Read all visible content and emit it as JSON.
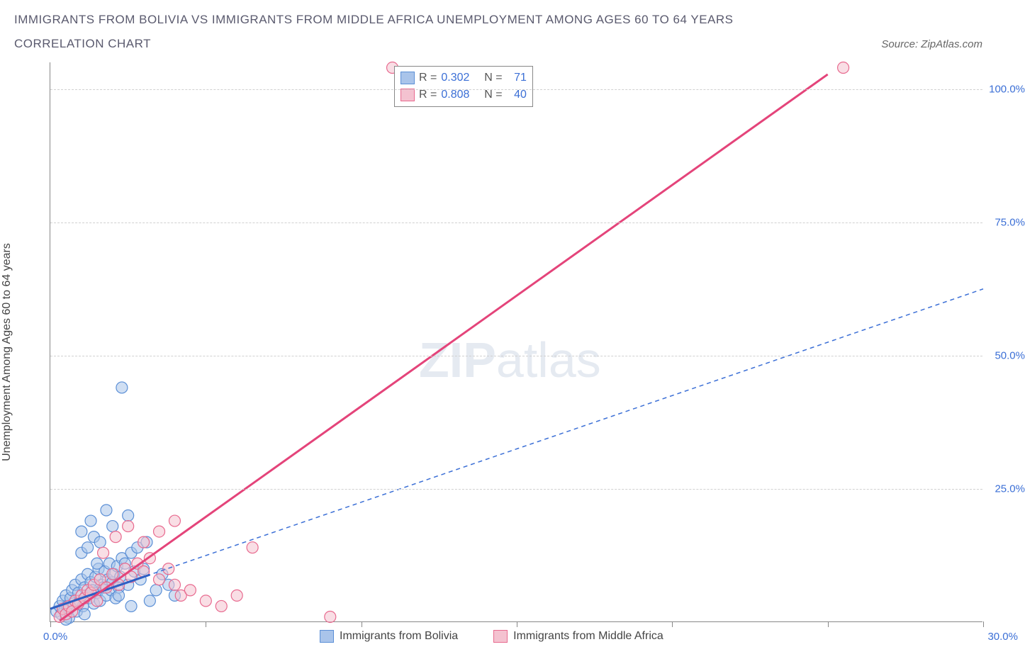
{
  "title": "IMMIGRANTS FROM BOLIVIA VS IMMIGRANTS FROM MIDDLE AFRICA UNEMPLOYMENT AMONG AGES 60 TO 64 YEARS",
  "subtitle": "CORRELATION CHART",
  "source_label": "Source:",
  "source_value": "ZipAtlas.com",
  "y_axis_label": "Unemployment Among Ages 60 to 64 years",
  "watermark_bold": "ZIP",
  "watermark_light": "atlas",
  "chart": {
    "type": "scatter",
    "xlim": [
      0,
      30
    ],
    "ylim": [
      0,
      105
    ],
    "x_ticks": [
      0,
      5,
      10,
      15,
      20,
      25,
      30
    ],
    "x_tick_labels": {
      "left": "0.0%",
      "right": "30.0%"
    },
    "y_ticks": [
      25,
      50,
      75,
      100
    ],
    "y_tick_labels": [
      "25.0%",
      "50.0%",
      "75.0%",
      "100.0%"
    ],
    "grid_color": "#d0d0d0",
    "background": "#ffffff",
    "series": [
      {
        "name": "Immigrants from Bolivia",
        "color_fill": "#a9c4ea",
        "color_stroke": "#5b8fd6",
        "marker_radius": 8,
        "fill_opacity": 0.55,
        "R": "0.302",
        "N": "71",
        "trend": {
          "style": "dashed",
          "stroke": "#3b6fd6",
          "width": 1.5,
          "slope": 2.0,
          "intercept": 2.5,
          "x0": 0,
          "x1": 30
        },
        "trend_solid_segment": {
          "stroke": "#2d5fc4",
          "width": 3,
          "x0": 0,
          "x1": 3.2
        },
        "points": [
          [
            0.2,
            2
          ],
          [
            0.3,
            3
          ],
          [
            0.35,
            1.5
          ],
          [
            0.4,
            4
          ],
          [
            0.45,
            2.2
          ],
          [
            0.5,
            5
          ],
          [
            0.55,
            3
          ],
          [
            0.6,
            2.5
          ],
          [
            0.65,
            4.5
          ],
          [
            0.7,
            6
          ],
          [
            0.75,
            3.5
          ],
          [
            0.8,
            7
          ],
          [
            0.85,
            2
          ],
          [
            0.9,
            5.5
          ],
          [
            0.95,
            4
          ],
          [
            1.0,
            8
          ],
          [
            1.05,
            3
          ],
          [
            1.1,
            6.5
          ],
          [
            1.15,
            5
          ],
          [
            1.2,
            9
          ],
          [
            1.25,
            4.5
          ],
          [
            1.3,
            7.5
          ],
          [
            1.35,
            6
          ],
          [
            1.4,
            3.5
          ],
          [
            1.45,
            8.5
          ],
          [
            1.5,
            5.5
          ],
          [
            1.55,
            10
          ],
          [
            1.6,
            4
          ],
          [
            1.65,
            7
          ],
          [
            1.7,
            6.5
          ],
          [
            1.75,
            9.5
          ],
          [
            1.8,
            5
          ],
          [
            1.85,
            8
          ],
          [
            1.9,
            11
          ],
          [
            1.95,
            6
          ],
          [
            2.0,
            7.5
          ],
          [
            2.05,
            9
          ],
          [
            2.1,
            4.5
          ],
          [
            2.15,
            10.5
          ],
          [
            2.2,
            6.5
          ],
          [
            2.25,
            8.5
          ],
          [
            2.3,
            12
          ],
          [
            2.4,
            11
          ],
          [
            2.5,
            7
          ],
          [
            2.6,
            13
          ],
          [
            2.7,
            9.5
          ],
          [
            2.8,
            14
          ],
          [
            2.9,
            8
          ],
          [
            3.0,
            10
          ],
          [
            3.1,
            15
          ],
          [
            1.0,
            13
          ],
          [
            1.2,
            14
          ],
          [
            1.4,
            16
          ],
          [
            1.6,
            15
          ],
          [
            1.0,
            17
          ],
          [
            2.0,
            18
          ],
          [
            1.3,
            19
          ],
          [
            1.8,
            21
          ],
          [
            2.5,
            20
          ],
          [
            1.5,
            11
          ],
          [
            2.2,
            5
          ],
          [
            2.6,
            3
          ],
          [
            3.2,
            4
          ],
          [
            3.4,
            6
          ],
          [
            3.6,
            9
          ],
          [
            3.8,
            7
          ],
          [
            4.0,
            5
          ],
          [
            1.1,
            1.5
          ],
          [
            0.6,
            0.8
          ],
          [
            2.3,
            44
          ],
          [
            0.5,
            0.5
          ]
        ]
      },
      {
        "name": "Immigrants from Middle Africa",
        "color_fill": "#f4c2d0",
        "color_stroke": "#e86a8f",
        "marker_radius": 8,
        "fill_opacity": 0.55,
        "R": "0.808",
        "N": "40",
        "trend": {
          "style": "solid",
          "stroke": "#e4447a",
          "width": 3,
          "slope": 4.15,
          "intercept": -1,
          "x0": 0.3,
          "x1": 25
        },
        "points": [
          [
            0.3,
            1
          ],
          [
            0.4,
            2.5
          ],
          [
            0.5,
            1.5
          ],
          [
            0.6,
            3
          ],
          [
            0.7,
            2
          ],
          [
            0.8,
            4
          ],
          [
            0.9,
            3.5
          ],
          [
            1.0,
            5
          ],
          [
            1.1,
            4.5
          ],
          [
            1.2,
            6
          ],
          [
            1.3,
            5.5
          ],
          [
            1.4,
            7
          ],
          [
            1.5,
            4
          ],
          [
            1.6,
            8
          ],
          [
            1.8,
            6.5
          ],
          [
            2.0,
            9
          ],
          [
            2.2,
            7
          ],
          [
            2.4,
            10
          ],
          [
            2.6,
            8.5
          ],
          [
            2.8,
            11
          ],
          [
            3.0,
            9.5
          ],
          [
            3.2,
            12
          ],
          [
            3.5,
            8
          ],
          [
            3.8,
            10
          ],
          [
            4.0,
            7
          ],
          [
            4.2,
            5
          ],
          [
            4.5,
            6
          ],
          [
            5.0,
            4
          ],
          [
            5.5,
            3
          ],
          [
            6.0,
            5
          ],
          [
            3.0,
            15
          ],
          [
            3.5,
            17
          ],
          [
            4.0,
            19
          ],
          [
            6.5,
            14
          ],
          [
            9.0,
            1
          ],
          [
            11.0,
            104
          ],
          [
            25.5,
            104
          ],
          [
            2.5,
            18
          ],
          [
            1.7,
            13
          ],
          [
            2.1,
            16
          ]
        ]
      }
    ]
  },
  "stat_labels": {
    "R": "R =",
    "N": "N ="
  },
  "legend_bottom": [
    {
      "label": "Immigrants from Bolivia",
      "fill": "#a9c4ea",
      "stroke": "#5b8fd6"
    },
    {
      "label": "Immigrants from Middle Africa",
      "fill": "#f4c2d0",
      "stroke": "#e86a8f"
    }
  ]
}
